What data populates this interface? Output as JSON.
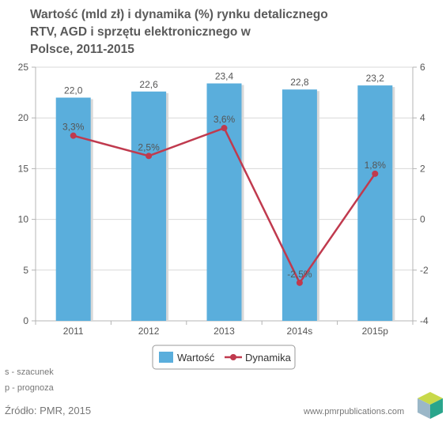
{
  "chart_data": {
    "type": "bar+line",
    "title_lines": [
      "Wartość (mld zł) i dynamika (%) rynku detalicznego",
      "RTV, AGD i sprzętu elektronicznego w",
      "Polsce, 2011-2015"
    ],
    "categories": [
      "2011",
      "2012",
      "2013",
      "2014s",
      "2015p"
    ],
    "y_left": {
      "ticks": [
        "0",
        "5",
        "10",
        "15",
        "20",
        "25"
      ],
      "min": 0,
      "max": 25
    },
    "y_right": {
      "ticks": [
        "-4",
        "-2",
        "0",
        "2",
        "4",
        "6"
      ],
      "min": -4,
      "max": 6
    },
    "series": [
      {
        "name": "Wartość",
        "type": "bar",
        "axis": "left",
        "values": [
          22.0,
          22.6,
          23.4,
          22.8,
          23.2
        ],
        "labels": [
          "22,0",
          "22,6",
          "23,4",
          "22,8",
          "23,2"
        ],
        "color": "#5aaedc"
      },
      {
        "name": "Dynamika",
        "type": "line",
        "axis": "right",
        "values": [
          3.3,
          2.5,
          3.6,
          -2.5,
          1.8
        ],
        "labels": [
          "3,3%",
          "2,5%",
          "3,6%",
          "-2,5%",
          "1,8%"
        ],
        "color": "#c03a4e"
      }
    ],
    "legend_position": "bottom",
    "grid": "horizontal"
  },
  "footnotes": [
    "s - szacunek",
    "p - prognoza"
  ],
  "source": "Źródło: PMR, 2015",
  "website": "www.pmrpublications.com",
  "colors": {
    "text": "#5a5a5a",
    "axis": "#b4b4b4",
    "grid": "#d8d8d8",
    "bar": "#5aaedc",
    "line": "#c03a4e"
  }
}
